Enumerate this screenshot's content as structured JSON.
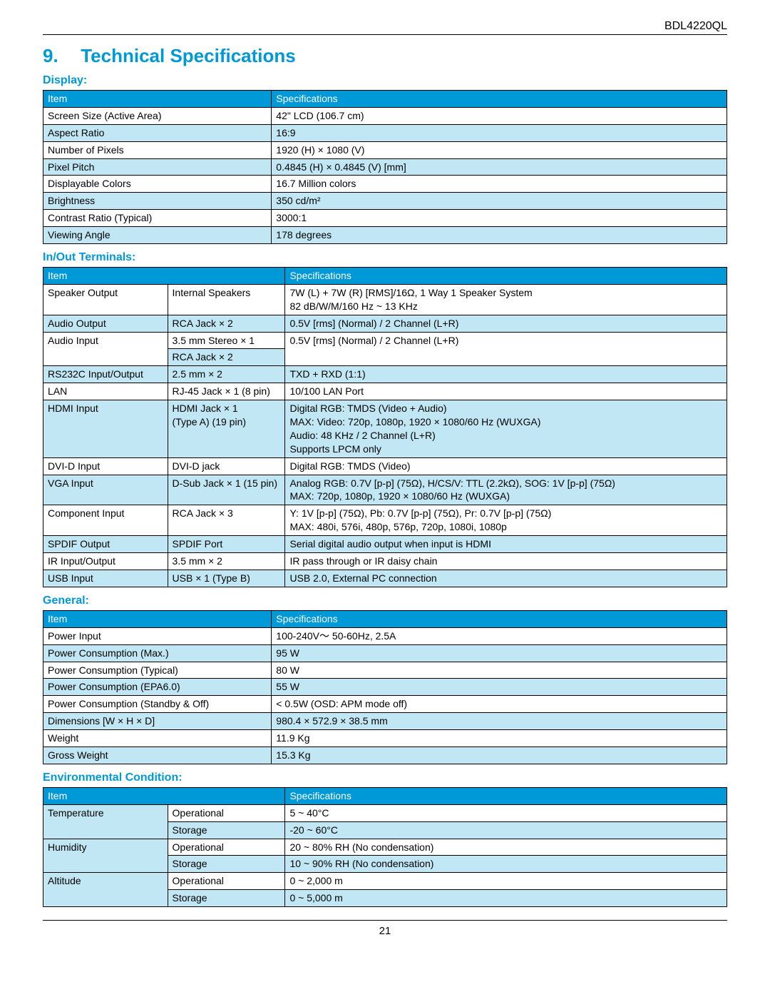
{
  "model": "BDL4220QL",
  "section": {
    "number": "9.",
    "title": "Technical Specifications"
  },
  "page_number": "21",
  "colors": {
    "accent": "#0099d8",
    "alt_row": "#c1e7f4",
    "row": "#ffffff",
    "header_text": "#ffffff",
    "text": "#000000"
  },
  "tables": {
    "display": {
      "title": "Display:",
      "head": [
        "Item",
        "Specifications"
      ],
      "rows": [
        [
          "Screen Size (Active Area)",
          "42\" LCD (106.7 cm)"
        ],
        [
          "Aspect Ratio",
          "16:9"
        ],
        [
          "Number of Pixels",
          "1920 (H) × 1080 (V)"
        ],
        [
          "Pixel Pitch",
          "0.4845 (H) × 0.4845 (V) [mm]"
        ],
        [
          "Displayable Colors",
          "16.7 Million colors"
        ],
        [
          "Brightness",
          "350 cd/m²"
        ],
        [
          "Contrast Ratio (Typical)",
          "3000:1"
        ],
        [
          "Viewing Angle",
          "178 degrees"
        ]
      ]
    },
    "terminals": {
      "title": "In/Out Terminals:",
      "head": [
        "Item",
        "",
        "Specifications"
      ],
      "rows": [
        {
          "a": "Speaker Output",
          "b": "Internal Speakers",
          "c": [
            "7W (L) + 7W (R) [RMS]/16Ω, 1 Way 1 Speaker System",
            "82 dB/W/M/160 Hz ~ 13 KHz"
          ],
          "shade": "norm",
          "a_rowspan": 1
        },
        {
          "a": "Audio Output",
          "b": "RCA Jack × 2",
          "c": [
            "0.5V [rms] (Normal) / 2 Channel (L+R)"
          ],
          "shade": "alt"
        },
        {
          "a": "Audio Input",
          "a_rowspan": 2,
          "b": "3.5 mm Stereo × 1",
          "c": [
            "0.5V [rms] (Normal) / 2 Channel (L+R)"
          ],
          "shade": "norm",
          "c_rowspan": 2
        },
        {
          "b": "RCA Jack × 2",
          "shade": "norm",
          "b_shade": "alt"
        },
        {
          "a": "RS232C Input/Output",
          "b": "2.5 mm × 2",
          "c": [
            "TXD + RXD (1:1)"
          ],
          "shade": "alt"
        },
        {
          "a": "LAN",
          "b": "RJ-45 Jack × 1 (8 pin)",
          "c": [
            "10/100 LAN Port"
          ],
          "shade": "norm"
        },
        {
          "a": "HDMI Input",
          "b": [
            "HDMI Jack × 1",
            "(Type A) (19 pin)"
          ],
          "c": [
            "Digital RGB: TMDS (Video + Audio)",
            "MAX:   Video: 720p, 1080p, 1920 × 1080/60 Hz (WUXGA)",
            "          Audio: 48 KHz / 2 Channel (L+R)",
            "Supports LPCM only"
          ],
          "shade": "alt"
        },
        {
          "a": "DVI-D Input",
          "b": "DVI-D jack",
          "c": [
            "Digital RGB: TMDS (Video)"
          ],
          "shade": "norm"
        },
        {
          "a": "VGA Input",
          "b": "D-Sub Jack × 1 (15 pin)",
          "c": [
            "Analog RGB: 0.7V [p-p] (75Ω), H/CS/V: TTL (2.2kΩ), SOG: 1V [p-p] (75Ω)",
            "MAX: 720p, 1080p, 1920 × 1080/60 Hz (WUXGA)"
          ],
          "shade": "alt"
        },
        {
          "a": "Component Input",
          "b": "RCA Jack × 3",
          "c": [
            "Y: 1V [p-p] (75Ω), Pb: 0.7V [p-p] (75Ω), Pr: 0.7V [p-p] (75Ω)",
            "MAX: 480i, 576i, 480p, 576p, 720p, 1080i, 1080p"
          ],
          "shade": "norm"
        },
        {
          "a": "SPDIF Output",
          "b": "SPDIF Port",
          "c": [
            "Serial digital audio output when input is HDMI"
          ],
          "shade": "alt"
        },
        {
          "a": "IR Input/Output",
          "b": "3.5 mm × 2",
          "c": [
            "IR pass through or IR daisy chain"
          ],
          "shade": "norm"
        },
        {
          "a": "USB Input",
          "b": "USB × 1 (Type B)",
          "c": [
            "USB 2.0, External PC connection"
          ],
          "shade": "alt"
        }
      ]
    },
    "general": {
      "title": "General:",
      "head": [
        "Item",
        "Specifications"
      ],
      "rows": [
        [
          "Power Input",
          "100-240V〜 50-60Hz, 2.5A"
        ],
        [
          "Power Consumption (Max.)",
          "95 W"
        ],
        [
          "Power Consumption (Typical)",
          "80 W"
        ],
        [
          "Power Consumption (EPA6.0)",
          "55 W"
        ],
        [
          "Power Consumption (Standby & Off)",
          "< 0.5W (OSD: APM mode off)"
        ],
        [
          "Dimensions [W × H × D]",
          "980.4 × 572.9 × 38.5 mm"
        ],
        [
          "Weight",
          "11.9 Kg"
        ],
        [
          "Gross Weight",
          "15.3 Kg"
        ]
      ]
    },
    "env": {
      "title": "Environmental Condition:",
      "head": [
        "Item",
        "",
        "Specifications"
      ],
      "rows": [
        {
          "a": "Temperature",
          "a_rowspan": 2,
          "b": "Operational",
          "c": "5 ~ 40°C",
          "shade": "norm"
        },
        {
          "b": "Storage",
          "c": "-20 ~ 60°C",
          "shade": "alt"
        },
        {
          "a": "Humidity",
          "a_rowspan": 2,
          "b": "Operational",
          "c": "20 ~ 80% RH (No condensation)",
          "shade": "norm"
        },
        {
          "b": "Storage",
          "c": "10 ~ 90% RH (No condensation)",
          "shade": "alt"
        },
        {
          "a": "Altitude",
          "a_rowspan": 2,
          "b": "Operational",
          "c": "0 ~ 2,000 m",
          "shade": "norm"
        },
        {
          "b": "Storage",
          "c": "0 ~ 5,000 m",
          "shade": "alt"
        }
      ]
    }
  }
}
